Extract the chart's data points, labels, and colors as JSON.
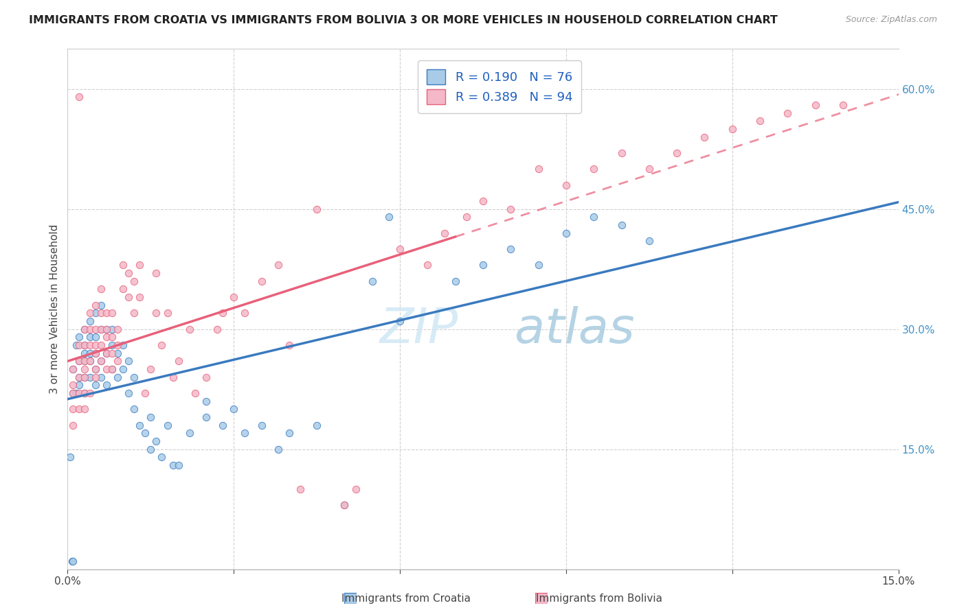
{
  "title": "IMMIGRANTS FROM CROATIA VS IMMIGRANTS FROM BOLIVIA 3 OR MORE VEHICLES IN HOUSEHOLD CORRELATION CHART",
  "source": "Source: ZipAtlas.com",
  "ylabel": "3 or more Vehicles in Household",
  "xmin": 0.0,
  "xmax": 0.15,
  "ymin": 0.0,
  "ymax": 0.65,
  "ytick_right_labels": [
    "",
    "15.0%",
    "30.0%",
    "45.0%",
    "60.0%"
  ],
  "ytick_right_vals": [
    0.0,
    0.15,
    0.3,
    0.45,
    0.6
  ],
  "R_croatia": 0.19,
  "N_croatia": 76,
  "R_bolivia": 0.389,
  "N_bolivia": 94,
  "color_croatia": "#a8cce8",
  "color_bolivia": "#f4b8c8",
  "trendline_croatia_color": "#3a7abf",
  "trendline_bolivia_color": "#e8607a",
  "croatia_x": [
    0.0005,
    0.0008,
    0.001,
    0.001,
    0.001,
    0.0015,
    0.0015,
    0.002,
    0.002,
    0.002,
    0.002,
    0.003,
    0.003,
    0.003,
    0.003,
    0.003,
    0.003,
    0.004,
    0.004,
    0.004,
    0.004,
    0.004,
    0.005,
    0.005,
    0.005,
    0.005,
    0.005,
    0.006,
    0.006,
    0.006,
    0.006,
    0.007,
    0.007,
    0.007,
    0.008,
    0.008,
    0.008,
    0.009,
    0.009,
    0.01,
    0.01,
    0.011,
    0.011,
    0.012,
    0.012,
    0.013,
    0.014,
    0.015,
    0.015,
    0.016,
    0.017,
    0.018,
    0.019,
    0.02,
    0.022,
    0.025,
    0.025,
    0.028,
    0.03,
    0.032,
    0.035,
    0.038,
    0.04,
    0.045,
    0.05,
    0.055,
    0.058,
    0.06,
    0.07,
    0.075,
    0.08,
    0.085,
    0.09,
    0.095,
    0.1,
    0.105
  ],
  "croatia_y": [
    0.14,
    0.01,
    0.01,
    0.22,
    0.25,
    0.22,
    0.28,
    0.23,
    0.26,
    0.24,
    0.29,
    0.22,
    0.24,
    0.27,
    0.28,
    0.26,
    0.3,
    0.24,
    0.26,
    0.27,
    0.29,
    0.31,
    0.23,
    0.25,
    0.27,
    0.29,
    0.32,
    0.24,
    0.26,
    0.3,
    0.33,
    0.23,
    0.27,
    0.3,
    0.25,
    0.28,
    0.3,
    0.24,
    0.27,
    0.25,
    0.28,
    0.22,
    0.26,
    0.2,
    0.24,
    0.18,
    0.17,
    0.15,
    0.19,
    0.16,
    0.14,
    0.18,
    0.13,
    0.13,
    0.17,
    0.19,
    0.21,
    0.18,
    0.2,
    0.17,
    0.18,
    0.15,
    0.17,
    0.18,
    0.08,
    0.36,
    0.44,
    0.31,
    0.36,
    0.38,
    0.4,
    0.38,
    0.42,
    0.44,
    0.43,
    0.41
  ],
  "bolivia_x": [
    0.001,
    0.001,
    0.001,
    0.001,
    0.001,
    0.002,
    0.002,
    0.002,
    0.002,
    0.002,
    0.002,
    0.003,
    0.003,
    0.003,
    0.003,
    0.003,
    0.003,
    0.003,
    0.004,
    0.004,
    0.004,
    0.004,
    0.004,
    0.005,
    0.005,
    0.005,
    0.005,
    0.005,
    0.005,
    0.006,
    0.006,
    0.006,
    0.006,
    0.006,
    0.007,
    0.007,
    0.007,
    0.007,
    0.007,
    0.008,
    0.008,
    0.008,
    0.008,
    0.009,
    0.009,
    0.009,
    0.01,
    0.01,
    0.011,
    0.011,
    0.012,
    0.012,
    0.013,
    0.013,
    0.014,
    0.015,
    0.016,
    0.016,
    0.017,
    0.018,
    0.019,
    0.02,
    0.022,
    0.023,
    0.025,
    0.027,
    0.028,
    0.03,
    0.032,
    0.035,
    0.038,
    0.04,
    0.042,
    0.045,
    0.05,
    0.052,
    0.06,
    0.065,
    0.068,
    0.072,
    0.075,
    0.08,
    0.085,
    0.09,
    0.095,
    0.1,
    0.105,
    0.11,
    0.115,
    0.12,
    0.125,
    0.13,
    0.135,
    0.14
  ],
  "bolivia_y": [
    0.22,
    0.25,
    0.2,
    0.23,
    0.18,
    0.59,
    0.26,
    0.28,
    0.24,
    0.22,
    0.2,
    0.26,
    0.28,
    0.24,
    0.22,
    0.25,
    0.3,
    0.2,
    0.32,
    0.28,
    0.3,
    0.26,
    0.22,
    0.27,
    0.25,
    0.3,
    0.28,
    0.24,
    0.33,
    0.28,
    0.3,
    0.26,
    0.32,
    0.35,
    0.29,
    0.32,
    0.27,
    0.3,
    0.25,
    0.32,
    0.29,
    0.27,
    0.25,
    0.3,
    0.28,
    0.26,
    0.35,
    0.38,
    0.34,
    0.37,
    0.36,
    0.32,
    0.38,
    0.34,
    0.22,
    0.25,
    0.37,
    0.32,
    0.28,
    0.32,
    0.24,
    0.26,
    0.3,
    0.22,
    0.24,
    0.3,
    0.32,
    0.34,
    0.32,
    0.36,
    0.38,
    0.28,
    0.1,
    0.45,
    0.08,
    0.1,
    0.4,
    0.38,
    0.42,
    0.44,
    0.46,
    0.45,
    0.5,
    0.48,
    0.5,
    0.52,
    0.5,
    0.52,
    0.54,
    0.55,
    0.56,
    0.57,
    0.58,
    0.58
  ],
  "watermark": "ZIP  atlas",
  "background_color": "#ffffff",
  "grid_color": "#d0d0d0"
}
